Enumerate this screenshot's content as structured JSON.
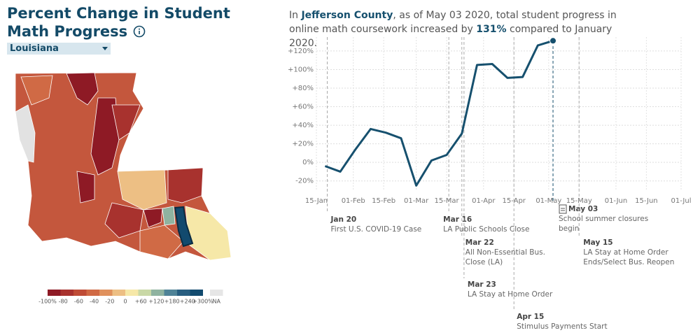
{
  "title": "Percent Change in Student Math Progress",
  "dropdown": "Louisiana",
  "summary": [
    "In ",
    "Jefferson County",
    ", as of May 03 2020, total student progress in online math coursework increased by ",
    "131%",
    " compared to January 2020."
  ],
  "map_legend": {
    "colors": [
      "#8e1a25",
      "#a8322e",
      "#bf4c36",
      "#d06a45",
      "#e0915d",
      "#edbf84",
      "#f6e8a8",
      "#c9d8a6",
      "#8fb3a0",
      "#4f8397",
      "#285e80",
      "#124a6e",
      "#e6e6e6"
    ],
    "labels": [
      "-100%",
      "-80",
      "-60",
      "-40",
      "-20",
      "0",
      "+60",
      "+120",
      "+180",
      "+240",
      "+300%",
      "NA"
    ]
  },
  "chart_data": {
    "type": "line",
    "x": [
      "2020-01-19",
      "2020-01-26",
      "2020-02-02",
      "2020-02-09",
      "2020-02-16",
      "2020-02-23",
      "2020-03-01",
      "2020-03-08",
      "2020-03-15",
      "2020-03-22",
      "2020-03-29",
      "2020-04-05",
      "2020-04-12",
      "2020-04-19",
      "2020-04-26",
      "2020-05-03"
    ],
    "series": [
      {
        "name": "Jefferson County",
        "color": "#16506e",
        "values": [
          -4,
          -10,
          14,
          36,
          32,
          26,
          -25,
          2,
          8,
          31,
          105,
          106,
          91,
          92,
          126,
          131
        ]
      }
    ],
    "xlim": [
      "2020-01-15",
      "2020-07-01"
    ],
    "xticks": [
      {
        "value": "2020-01-15",
        "label": "15-Jan"
      },
      {
        "value": "2020-02-01",
        "label": "01-Feb"
      },
      {
        "value": "2020-02-15",
        "label": "15-Feb"
      },
      {
        "value": "2020-03-01",
        "label": "01-Mar"
      },
      {
        "value": "2020-03-15",
        "label": "15-Mar"
      },
      {
        "value": "2020-04-01",
        "label": "01-Apr"
      },
      {
        "value": "2020-04-15",
        "label": "15-Apr"
      },
      {
        "value": "2020-05-01",
        "label": "01-May"
      },
      {
        "value": "2020-05-15",
        "label": "15-May"
      },
      {
        "value": "2020-06-01",
        "label": "01-Jun"
      },
      {
        "value": "2020-06-15",
        "label": "15-Jun"
      },
      {
        "value": "2020-07-01",
        "label": "01-Jul"
      }
    ],
    "ylim": [
      -30,
      135
    ],
    "yticks": [
      {
        "value": -20,
        "label": "-20%"
      },
      {
        "value": 0,
        "label": "0%"
      },
      {
        "value": 20,
        "label": "+20%"
      },
      {
        "value": 40,
        "label": "+40%"
      },
      {
        "value": 60,
        "label": "+60%"
      },
      {
        "value": 80,
        "label": "+80%"
      },
      {
        "value": 100,
        "label": "+100%"
      },
      {
        "value": 120,
        "label": "+120%"
      }
    ],
    "grid": true,
    "annotations": [
      {
        "x": "2020-01-20",
        "date_label": "Jan 20",
        "lines": [
          "First U.S. COVID-19 Case"
        ]
      },
      {
        "x": "2020-03-16",
        "date_label": "Mar 16",
        "lines": [
          "LA Public Schools Close"
        ]
      },
      {
        "x": "2020-03-22",
        "date_label": "Mar 22",
        "lines": [
          "All Non-Essential Bus.",
          "Close (LA)"
        ]
      },
      {
        "x": "2020-03-23",
        "date_label": "Mar 23",
        "lines": [
          "LA Stay at Home Order"
        ]
      },
      {
        "x": "2020-04-15",
        "date_label": "Apr 15",
        "lines": [
          "Stimulus Payments Start"
        ]
      },
      {
        "x": "2020-05-03",
        "date_label": "May 03",
        "lines": [
          "School summer closures",
          "begin"
        ]
      },
      {
        "x": "2020-05-15",
        "date_label": "May 15",
        "lines": [
          "LA Stay at Home Order",
          "Ends/Select Bus. Reopen"
        ]
      }
    ]
  }
}
